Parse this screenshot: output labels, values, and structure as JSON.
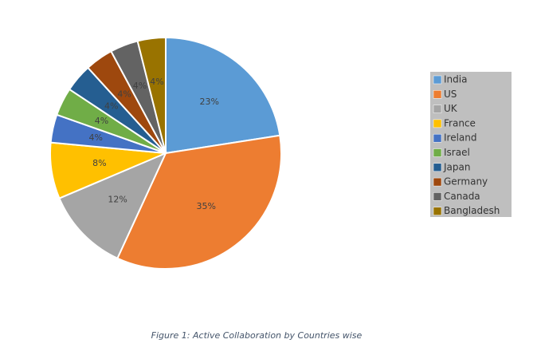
{
  "chart_data": {
    "type": "pie",
    "title": "Figure 1: Active Collaboration by Countries wise",
    "categories": [
      "India",
      "US",
      "UK",
      "France",
      "Ireland",
      "Israel",
      "Japan",
      "Germany",
      "Canada",
      "Bangladesh"
    ],
    "values": [
      23,
      35,
      12,
      8,
      4,
      4,
      4,
      4,
      4,
      4
    ],
    "value_labels": [
      "23%",
      "35%",
      "12%",
      "8%",
      "4%",
      "4%",
      "4%",
      "4%",
      "4%",
      "4%"
    ],
    "colors": [
      "#5b9bd5",
      "#ed7d31",
      "#a5a5a5",
      "#ffc000",
      "#4472c4",
      "#70ad47",
      "#255e91",
      "#9e480e",
      "#636363",
      "#997300"
    ],
    "legend": "right"
  }
}
